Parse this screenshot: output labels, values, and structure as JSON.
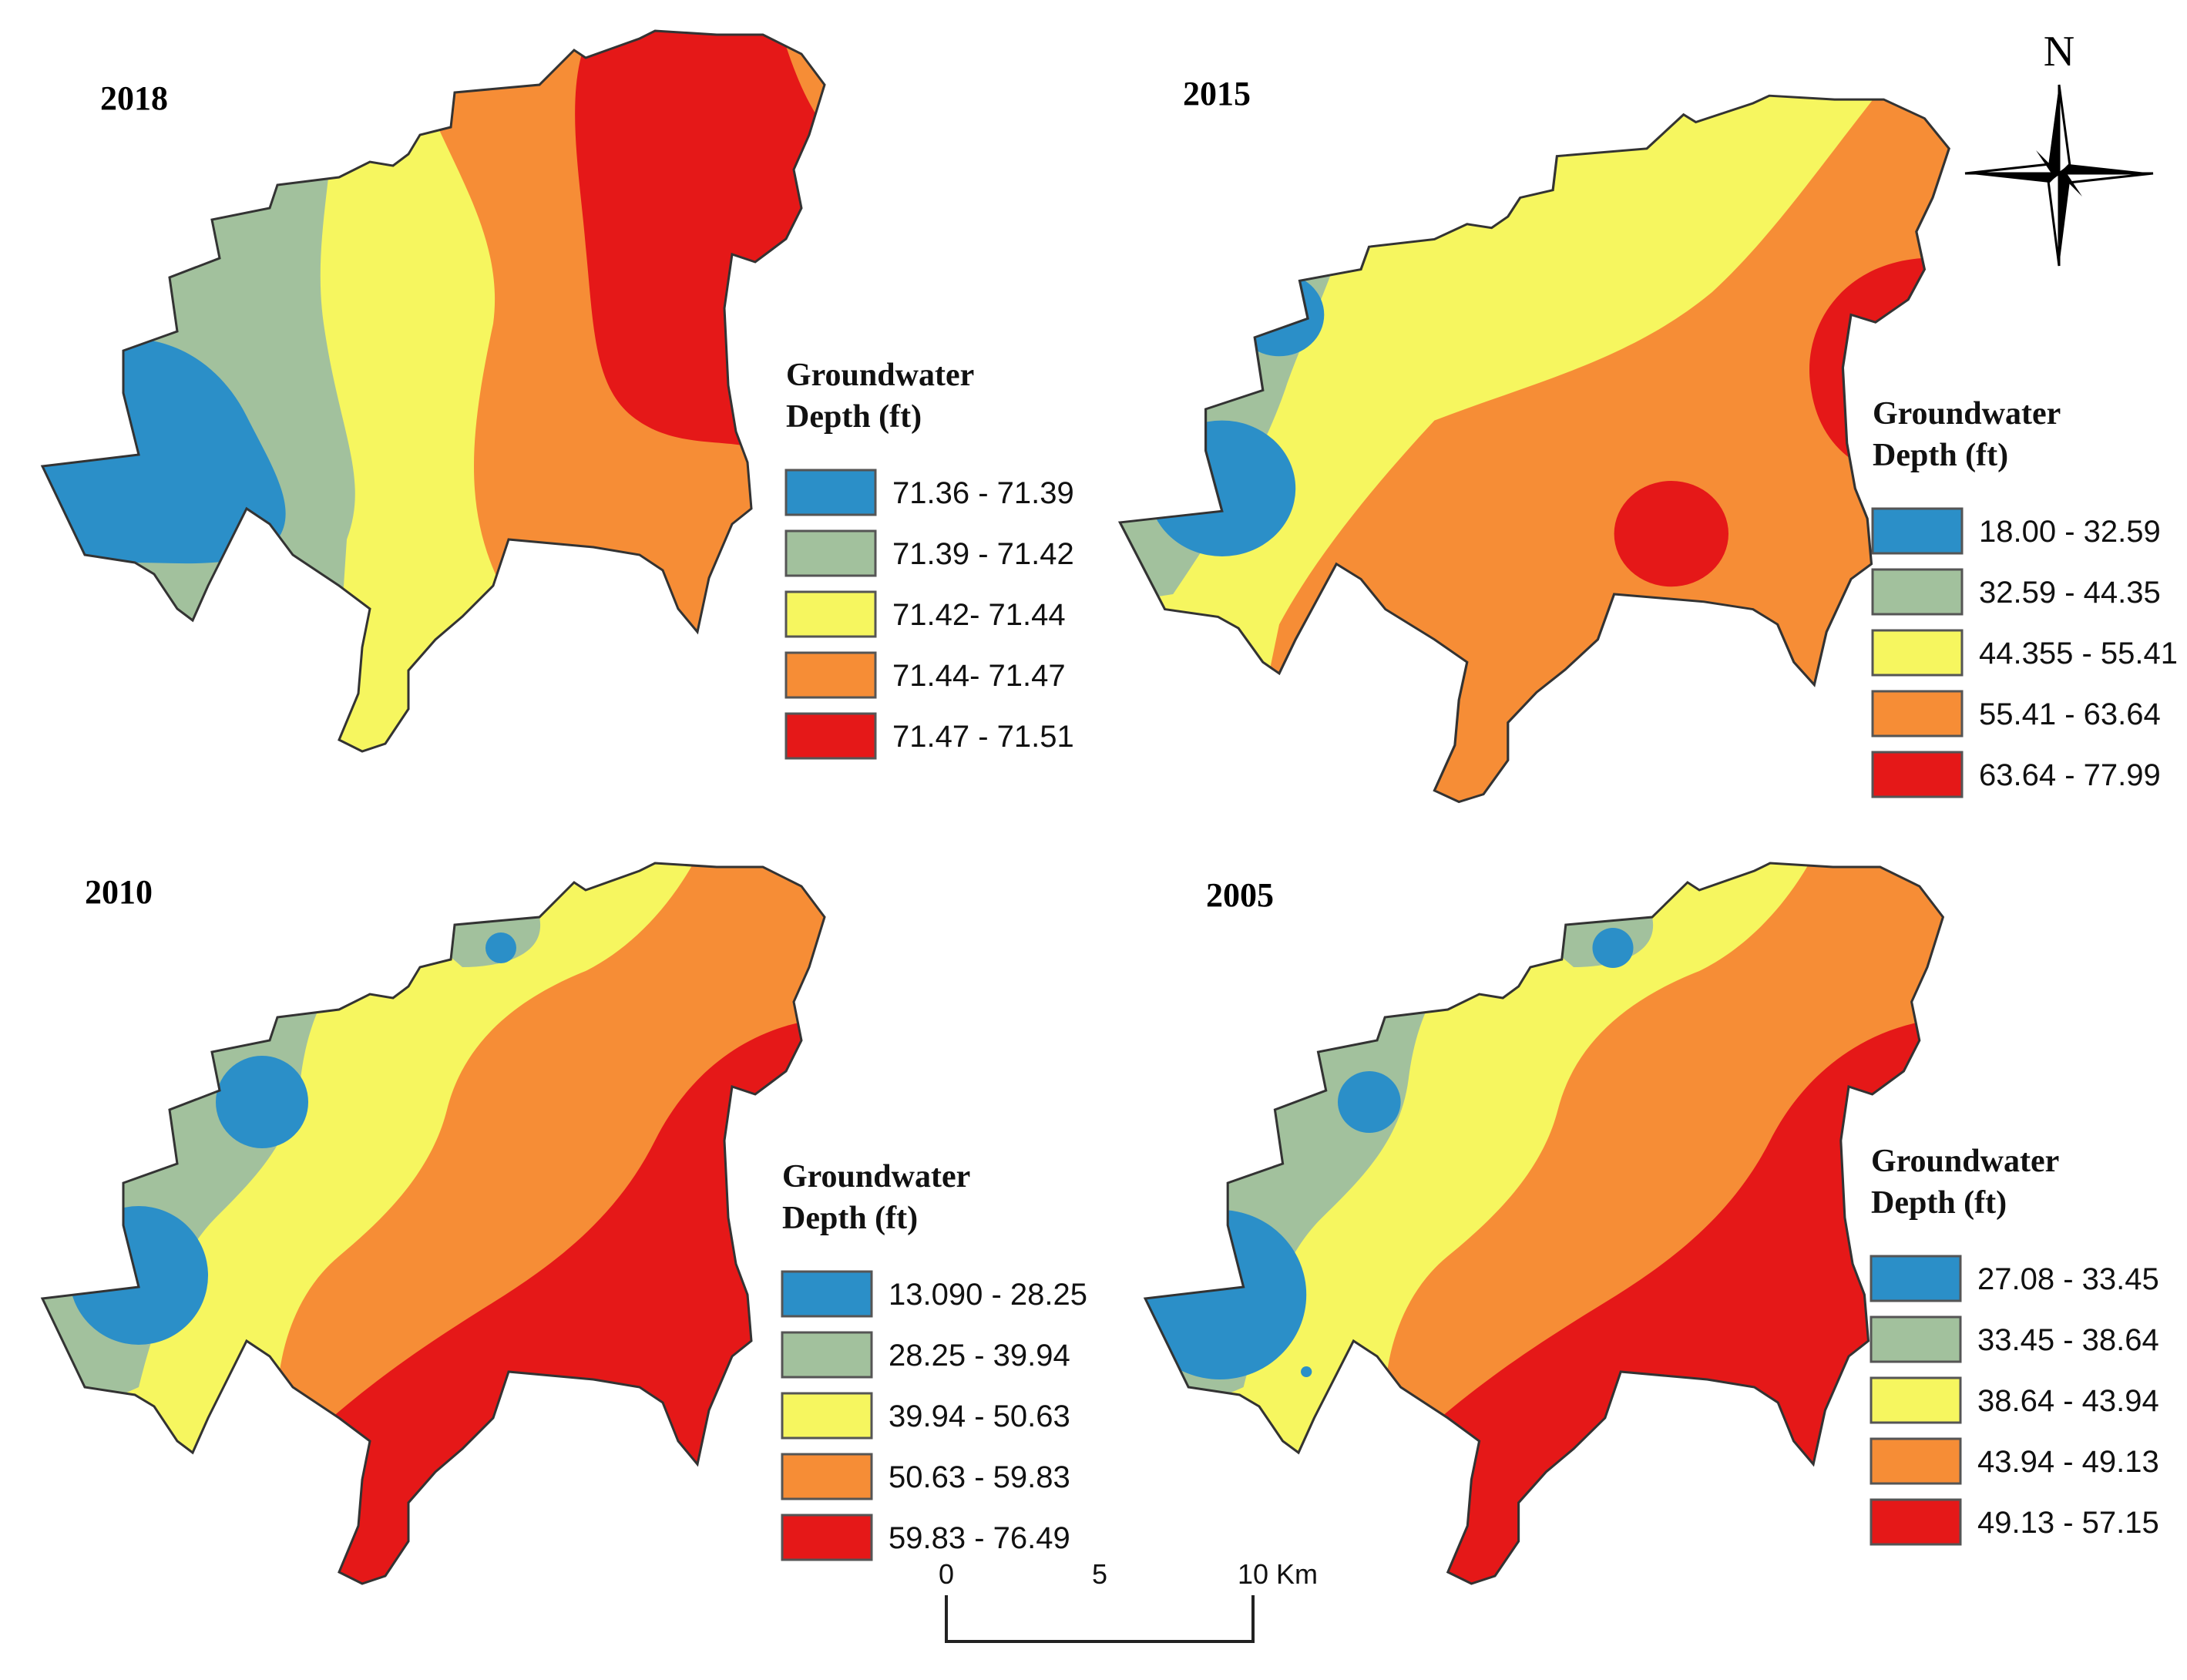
{
  "colors": {
    "class1": "#2b8fc8",
    "class2": "#a2c19d",
    "class3": "#f6f65f",
    "class4": "#f68d36",
    "class5": "#e51818"
  },
  "panels": [
    {
      "year": "2018",
      "legend_title": [
        "Groundwater",
        "Depth (ft)"
      ],
      "classes": [
        "71.36 - 71.39",
        "71.39 - 71.42",
        "71.42- 71.44",
        "71.44- 71.47",
        "71.47 - 71.51"
      ]
    },
    {
      "year": "2015",
      "legend_title": [
        "Groundwater",
        "Depth (ft)"
      ],
      "classes": [
        "18.00 - 32.59",
        "32.59 - 44.35",
        "44.355 - 55.41",
        "55.41 - 63.64",
        "63.64 - 77.99"
      ]
    },
    {
      "year": "2010",
      "legend_title": [
        "Groundwater",
        "Depth (ft)"
      ],
      "classes": [
        "13.090 - 28.25",
        "28.25 - 39.94",
        "39.94 - 50.63",
        "50.63 - 59.83",
        "59.83 - 76.49"
      ]
    },
    {
      "year": "2005",
      "legend_title": [
        "Groundwater",
        "Depth (ft)"
      ],
      "classes": [
        "27.08 - 33.45",
        "33.45 - 38.64",
        "38.64 - 43.94",
        "43.94 - 49.13",
        "49.13 - 57.15"
      ]
    }
  ],
  "north_arrow": {
    "label": "N",
    "icon": "north-arrow-icon"
  },
  "scale_bar": {
    "ticks": [
      "0",
      "5",
      "10 Km"
    ]
  }
}
